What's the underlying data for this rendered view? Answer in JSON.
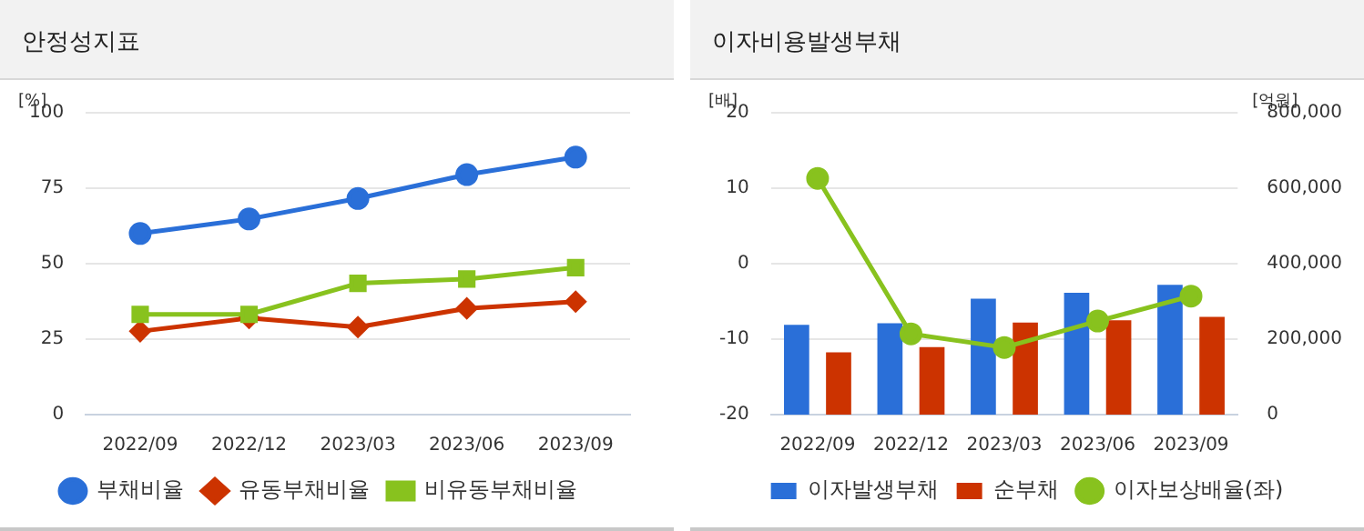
{
  "chart_data": [
    {
      "type": "line",
      "title": "안정성지표",
      "ylabel": "[%]",
      "categories": [
        "2022/09",
        "2022/12",
        "2023/03",
        "2023/06",
        "2023/09"
      ],
      "ylim": [
        0,
        100
      ],
      "yticks": [
        0,
        25,
        50,
        75,
        100
      ],
      "grid": "y",
      "legend": "bottom",
      "series": [
        {
          "name": "부채비율",
          "color": "#2a6fd8",
          "marker": "circle",
          "values": [
            60,
            64.8,
            71.6,
            79.5,
            85.3
          ]
        },
        {
          "name": "유동부채비율",
          "color": "#cc3300",
          "marker": "diamond",
          "values": [
            27.6,
            32,
            29,
            35.2,
            37.4
          ]
        },
        {
          "name": "비유동부채비율",
          "color": "#88c21e",
          "marker": "square",
          "values": [
            33.2,
            33.2,
            43.5,
            44.9,
            48.7
          ]
        }
      ]
    },
    {
      "type": "bar",
      "title": "이자비용발생부채",
      "ylabel": "[배]",
      "y2label": "[억원]",
      "categories": [
        "2022/09",
        "2022/12",
        "2023/03",
        "2023/06",
        "2023/09"
      ],
      "ylim": [
        -20,
        20
      ],
      "yticks": [
        -20,
        -10,
        0,
        10,
        20
      ],
      "y2lim": [
        0,
        800000
      ],
      "y2ticks": [
        {
          "value": 0,
          "label": "0"
        },
        {
          "value": 200000,
          "label": "200,000"
        },
        {
          "value": 400000,
          "label": "400,000"
        },
        {
          "value": 600000,
          "label": "600,000"
        },
        {
          "value": 800000,
          "label": "800,000"
        }
      ],
      "grid": "y",
      "legend": "bottom",
      "series": [
        {
          "name": "이자발생부채",
          "color": "#2a6fd8",
          "axis": "y2",
          "values": [
            238000,
            242000,
            307000,
            323000,
            344000
          ]
        },
        {
          "name": "순부채",
          "color": "#cc3300",
          "axis": "y2",
          "values": [
            165000,
            179000,
            244000,
            250000,
            259000
          ]
        },
        {
          "name": "이자보상배율(좌)",
          "type": "line",
          "color": "#88c21e",
          "marker": "circle",
          "values": [
            11.3,
            -9.3,
            -11.1,
            -7.6,
            -4.3
          ]
        }
      ]
    }
  ]
}
